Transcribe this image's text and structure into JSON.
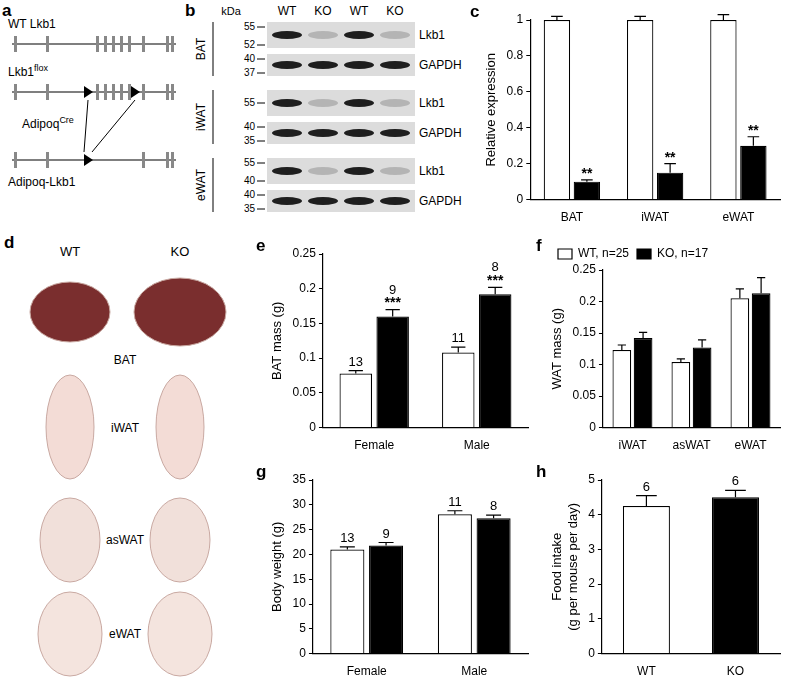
{
  "figure": {
    "a": {
      "panel": "a",
      "lines": [
        {
          "text": "WT Lkb1"
        },
        {
          "text": "Lkb1",
          "sup": "flox"
        },
        {
          "text": "Adipoq",
          "sup": "Cre"
        },
        {
          "text": "Adipoq-Lkb1"
        }
      ]
    },
    "b": {
      "panel": "b",
      "unit": "kDa",
      "lanes": [
        "WT",
        "KO",
        "WT",
        "KO"
      ],
      "groups": [
        {
          "tissue": "BAT",
          "blots": [
            {
              "protein": "Lkb1",
              "markers": [
                55,
                52
              ]
            },
            {
              "protein": "GAPDH",
              "markers": [
                40,
                37
              ]
            }
          ]
        },
        {
          "tissue": "iWAT",
          "blots": [
            {
              "protein": "Lkb1",
              "markers": [
                55
              ]
            },
            {
              "protein": "GAPDH",
              "markers": [
                40,
                35
              ]
            }
          ]
        },
        {
          "tissue": "eWAT",
          "blots": [
            {
              "protein": "Lkb1",
              "markers": [
                55,
                40
              ]
            },
            {
              "protein": "GAPDH",
              "markers": [
                40,
                35
              ]
            }
          ]
        }
      ]
    },
    "d": {
      "panel": "d",
      "columns": [
        "WT",
        "KO"
      ],
      "tissues": [
        "BAT",
        "iWAT",
        "asWAT",
        "eWAT"
      ]
    }
  },
  "chart_data": [
    {
      "panel": "c",
      "type": "bar",
      "categories": [
        "BAT",
        "iWAT",
        "eWAT"
      ],
      "ylabel": "Relative expression",
      "ylim": [
        0,
        1
      ],
      "yticks": [
        0,
        0.2,
        0.4,
        0.6,
        0.8,
        1
      ],
      "grid": false,
      "series": [
        {
          "name": "WT",
          "color": "#ffffff",
          "values": [
            1,
            1,
            1
          ],
          "errors": [
            0.02,
            0.02,
            0.03
          ]
        },
        {
          "name": "KO",
          "color": "#000000",
          "values": [
            0.1,
            0.15,
            0.3
          ],
          "errors": [
            0.01,
            0.05,
            0.05
          ],
          "annotations": [
            "**",
            "**",
            "**"
          ]
        }
      ]
    },
    {
      "panel": "e",
      "type": "bar",
      "categories": [
        "Female",
        "Male"
      ],
      "ylabel": "BAT mass (g)",
      "ylim": [
        0,
        0.25
      ],
      "yticks": [
        0,
        0.05,
        0.1,
        0.15,
        0.2,
        0.25
      ],
      "grid": false,
      "series": [
        {
          "name": "WT",
          "color": "#ffffff",
          "values": [
            0.078,
            0.108
          ],
          "errors": [
            0.004,
            0.008
          ],
          "n": [
            13,
            11
          ]
        },
        {
          "name": "KO",
          "color": "#000000",
          "values": [
            0.16,
            0.192
          ],
          "errors": [
            0.01,
            0.01
          ],
          "n": [
            9,
            8
          ],
          "annotations": [
            "***",
            "***"
          ]
        }
      ]
    },
    {
      "panel": "f",
      "type": "bar",
      "categories": [
        "iWAT",
        "asWAT",
        "eWAT"
      ],
      "ylabel": "WAT mass (g)",
      "ylim": [
        0,
        0.25
      ],
      "yticks": [
        0,
        0.05,
        0.1,
        0.15,
        0.2,
        0.25
      ],
      "grid": false,
      "legend": "top-left",
      "series": [
        {
          "name": "WT, n=25",
          "color": "#ffffff",
          "values": [
            0.123,
            0.104,
            0.205
          ],
          "errors": [
            0.008,
            0.005,
            0.015
          ]
        },
        {
          "name": "KO, n=17",
          "color": "#000000",
          "values": [
            0.142,
            0.127,
            0.213
          ],
          "errors": [
            0.009,
            0.012,
            0.025
          ]
        }
      ]
    },
    {
      "panel": "g",
      "type": "bar",
      "categories": [
        "Female",
        "Male"
      ],
      "ylabel": "Body weight (g)",
      "ylim": [
        0,
        35
      ],
      "yticks": [
        0,
        5,
        10,
        15,
        20,
        25,
        30,
        35
      ],
      "grid": false,
      "series": [
        {
          "name": "WT",
          "color": "#ffffff",
          "values": [
            21,
            28.1
          ],
          "errors": [
            0.5,
            0.7
          ],
          "n": [
            13,
            11
          ]
        },
        {
          "name": "KO",
          "color": "#000000",
          "values": [
            21.8,
            27.3
          ],
          "errors": [
            0.6,
            0.6
          ],
          "n": [
            9,
            8
          ]
        }
      ]
    },
    {
      "panel": "h",
      "type": "bar",
      "categories": [
        "WT",
        "KO"
      ],
      "ylabel": [
        "Food intake",
        "(g per mouse per day)"
      ],
      "ylim": [
        0,
        5
      ],
      "yticks": [
        0,
        1,
        2,
        3,
        4,
        5
      ],
      "grid": false,
      "values": [
        4.25,
        4.5
      ],
      "colors": [
        "#ffffff",
        "#000000"
      ],
      "errors": [
        0.3,
        0.2
      ],
      "n": [
        6,
        6
      ]
    }
  ]
}
